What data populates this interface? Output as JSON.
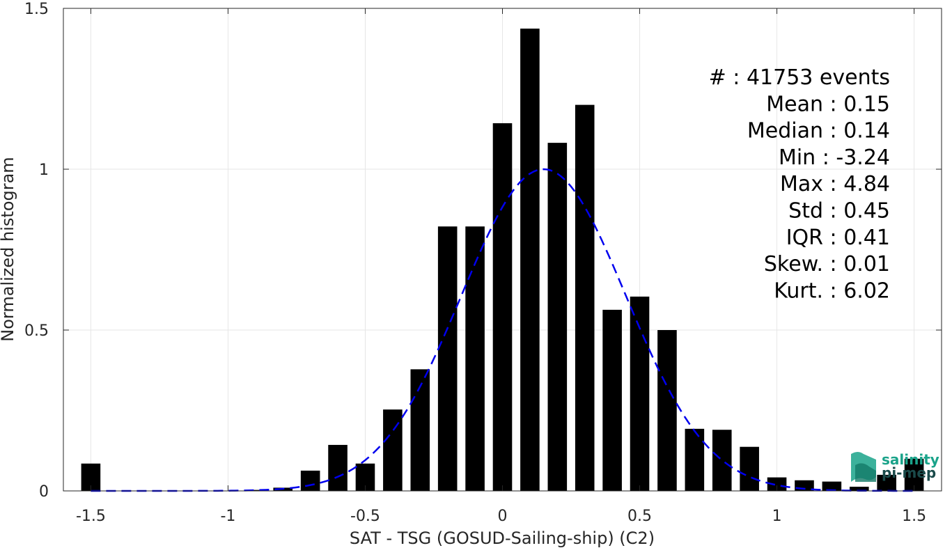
{
  "chart_data": {
    "type": "bar",
    "title": "",
    "xlabel": "SAT - TSG (GOSUD-Sailing-ship) (C2)",
    "ylabel": "Normalized histogram",
    "xlim": [
      -1.6,
      1.6
    ],
    "ylim": [
      0,
      1.5
    ],
    "xticks": [
      -1.5,
      -1,
      -0.5,
      0,
      0.5,
      1,
      1.5
    ],
    "xtick_labels": [
      "-1.5",
      "-1",
      "-0.5",
      "0",
      "0.5",
      "1",
      "1.5"
    ],
    "yticks": [
      0,
      0.5,
      1,
      1.5
    ],
    "ytick_labels": [
      "0",
      "0.5",
      "1",
      "1.5"
    ],
    "grid": true,
    "bin_width": 0.1,
    "bar_color": "#000000",
    "bins": [
      {
        "x": -1.5,
        "value": 0.085
      },
      {
        "x": -1.0,
        "value": 0.001
      },
      {
        "x": -0.9,
        "value": 0.003
      },
      {
        "x": -0.8,
        "value": 0.01
      },
      {
        "x": -0.7,
        "value": 0.063
      },
      {
        "x": -0.6,
        "value": 0.143
      },
      {
        "x": -0.5,
        "value": 0.085
      },
      {
        "x": -0.4,
        "value": 0.253
      },
      {
        "x": -0.3,
        "value": 0.378
      },
      {
        "x": -0.2,
        "value": 0.822
      },
      {
        "x": -0.1,
        "value": 0.822
      },
      {
        "x": 0.0,
        "value": 1.143
      },
      {
        "x": 0.1,
        "value": 1.437
      },
      {
        "x": 0.2,
        "value": 1.082
      },
      {
        "x": 0.3,
        "value": 1.2
      },
      {
        "x": 0.4,
        "value": 0.563
      },
      {
        "x": 0.5,
        "value": 0.604
      },
      {
        "x": 0.6,
        "value": 0.5
      },
      {
        "x": 0.7,
        "value": 0.193
      },
      {
        "x": 0.8,
        "value": 0.19
      },
      {
        "x": 0.9,
        "value": 0.137
      },
      {
        "x": 1.0,
        "value": 0.042
      },
      {
        "x": 1.1,
        "value": 0.033
      },
      {
        "x": 1.2,
        "value": 0.029
      },
      {
        "x": 1.3,
        "value": 0.013
      },
      {
        "x": 1.4,
        "value": 0.05
      },
      {
        "x": 1.5,
        "value": 0.1
      }
    ],
    "gaussian_fit": {
      "style": "dashed",
      "color": "#0000ee",
      "mean": 0.15,
      "sigma": 0.3,
      "peak": 1.0,
      "x_range": [
        -1.5,
        1.5
      ]
    },
    "annotations": [
      "#  : 41753 events",
      "Mean : 0.15",
      "Median : 0.14",
      "Min : -3.24",
      "Max : 4.84",
      "Std : 0.45",
      "IQR : 0.41",
      "Skew. : 0.01",
      "Kurt. : 6.02"
    ]
  },
  "logo": {
    "line1": "salinity",
    "line2": "pi-mep",
    "colors": {
      "teal": "#1aa38a",
      "dark": "#1a4a4a"
    }
  }
}
